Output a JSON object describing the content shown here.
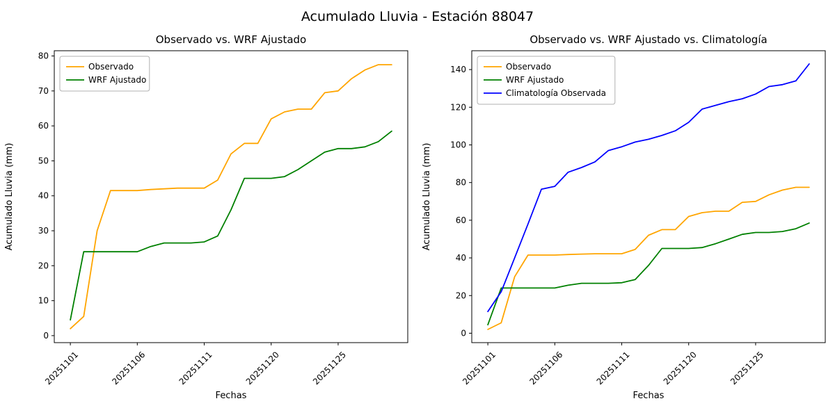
{
  "figure": {
    "title": "Acumulado Lluvia - Estación 88047"
  },
  "chart_data": [
    {
      "type": "line",
      "title": "Observado vs. WRF Ajustado",
      "xlabel": "Fechas",
      "ylabel": "Acumulado Lluvia (mm)",
      "grid": false,
      "legend_position": "upper left",
      "ylim": [
        -2,
        81.5
      ],
      "yticks": [
        0,
        10,
        20,
        30,
        40,
        50,
        60,
        70,
        80
      ],
      "x": [
        "20251101",
        "20251102",
        "20251103",
        "20251104",
        "20251105",
        "20251106",
        "20251107",
        "20251108",
        "20251109",
        "20251110",
        "20251111",
        "20251113",
        "20251115",
        "20251117",
        "20251119",
        "20251120",
        "20251121",
        "20251122",
        "20251123",
        "20251124",
        "20251125",
        "20251126",
        "20251127",
        "20251128",
        "20251129"
      ],
      "xtick_indices": [
        0,
        5,
        10,
        15,
        20
      ],
      "series": [
        {
          "name": "Observado",
          "color": "#ffa500",
          "values": [
            2,
            5.5,
            30,
            41.5,
            41.5,
            41.5,
            41.8,
            42,
            42.2,
            42.2,
            42.2,
            44.5,
            52,
            55,
            55,
            62,
            64,
            64.8,
            64.8,
            69.5,
            70,
            73.5,
            76,
            77.5,
            77.5
          ]
        },
        {
          "name": "WRF Ajustado",
          "color": "#008000",
          "values": [
            4.5,
            24,
            24,
            24,
            24,
            24,
            25.5,
            26.5,
            26.5,
            26.5,
            26.8,
            28.5,
            36,
            45,
            45,
            45,
            45.5,
            47.5,
            50,
            52.5,
            53.5,
            53.5,
            54,
            55.5,
            58.5
          ]
        }
      ]
    },
    {
      "type": "line",
      "title": "Observado vs. WRF Ajustado vs. Climatología",
      "xlabel": "Fechas",
      "ylabel": "Acumulado Lluvia (mm)",
      "grid": false,
      "legend_position": "upper left",
      "ylim": [
        -5,
        150
      ],
      "yticks": [
        0,
        20,
        40,
        60,
        80,
        100,
        120,
        140
      ],
      "x": [
        "20251101",
        "20251102",
        "20251103",
        "20251104",
        "20251105",
        "20251106",
        "20251107",
        "20251108",
        "20251109",
        "20251110",
        "20251111",
        "20251113",
        "20251115",
        "20251117",
        "20251119",
        "20251120",
        "20251121",
        "20251122",
        "20251123",
        "20251124",
        "20251125",
        "20251126",
        "20251127",
        "20251128",
        "20251129"
      ],
      "xtick_indices": [
        0,
        5,
        10,
        15,
        20
      ],
      "series": [
        {
          "name": "Observado",
          "color": "#ffa500",
          "values": [
            2,
            5.5,
            30,
            41.5,
            41.5,
            41.5,
            41.8,
            42,
            42.2,
            42.2,
            42.2,
            44.5,
            52,
            55,
            55,
            62,
            64,
            64.8,
            64.8,
            69.5,
            70,
            73.5,
            76,
            77.5,
            77.5
          ]
        },
        {
          "name": "WRF Ajustado",
          "color": "#008000",
          "values": [
            4.5,
            24,
            24,
            24,
            24,
            24,
            25.5,
            26.5,
            26.5,
            26.5,
            26.8,
            28.5,
            36,
            45,
            45,
            45,
            45.5,
            47.5,
            50,
            52.5,
            53.5,
            53.5,
            54,
            55.5,
            58.5
          ]
        },
        {
          "name": "Climatología Observada",
          "color": "#0000ff",
          "values": [
            11.5,
            22,
            40,
            58,
            76.5,
            78,
            85.5,
            88,
            91,
            97,
            99,
            101.5,
            103,
            105,
            107.5,
            112,
            119,
            121,
            123,
            124.5,
            127,
            131,
            132,
            134,
            143
          ]
        }
      ]
    }
  ]
}
